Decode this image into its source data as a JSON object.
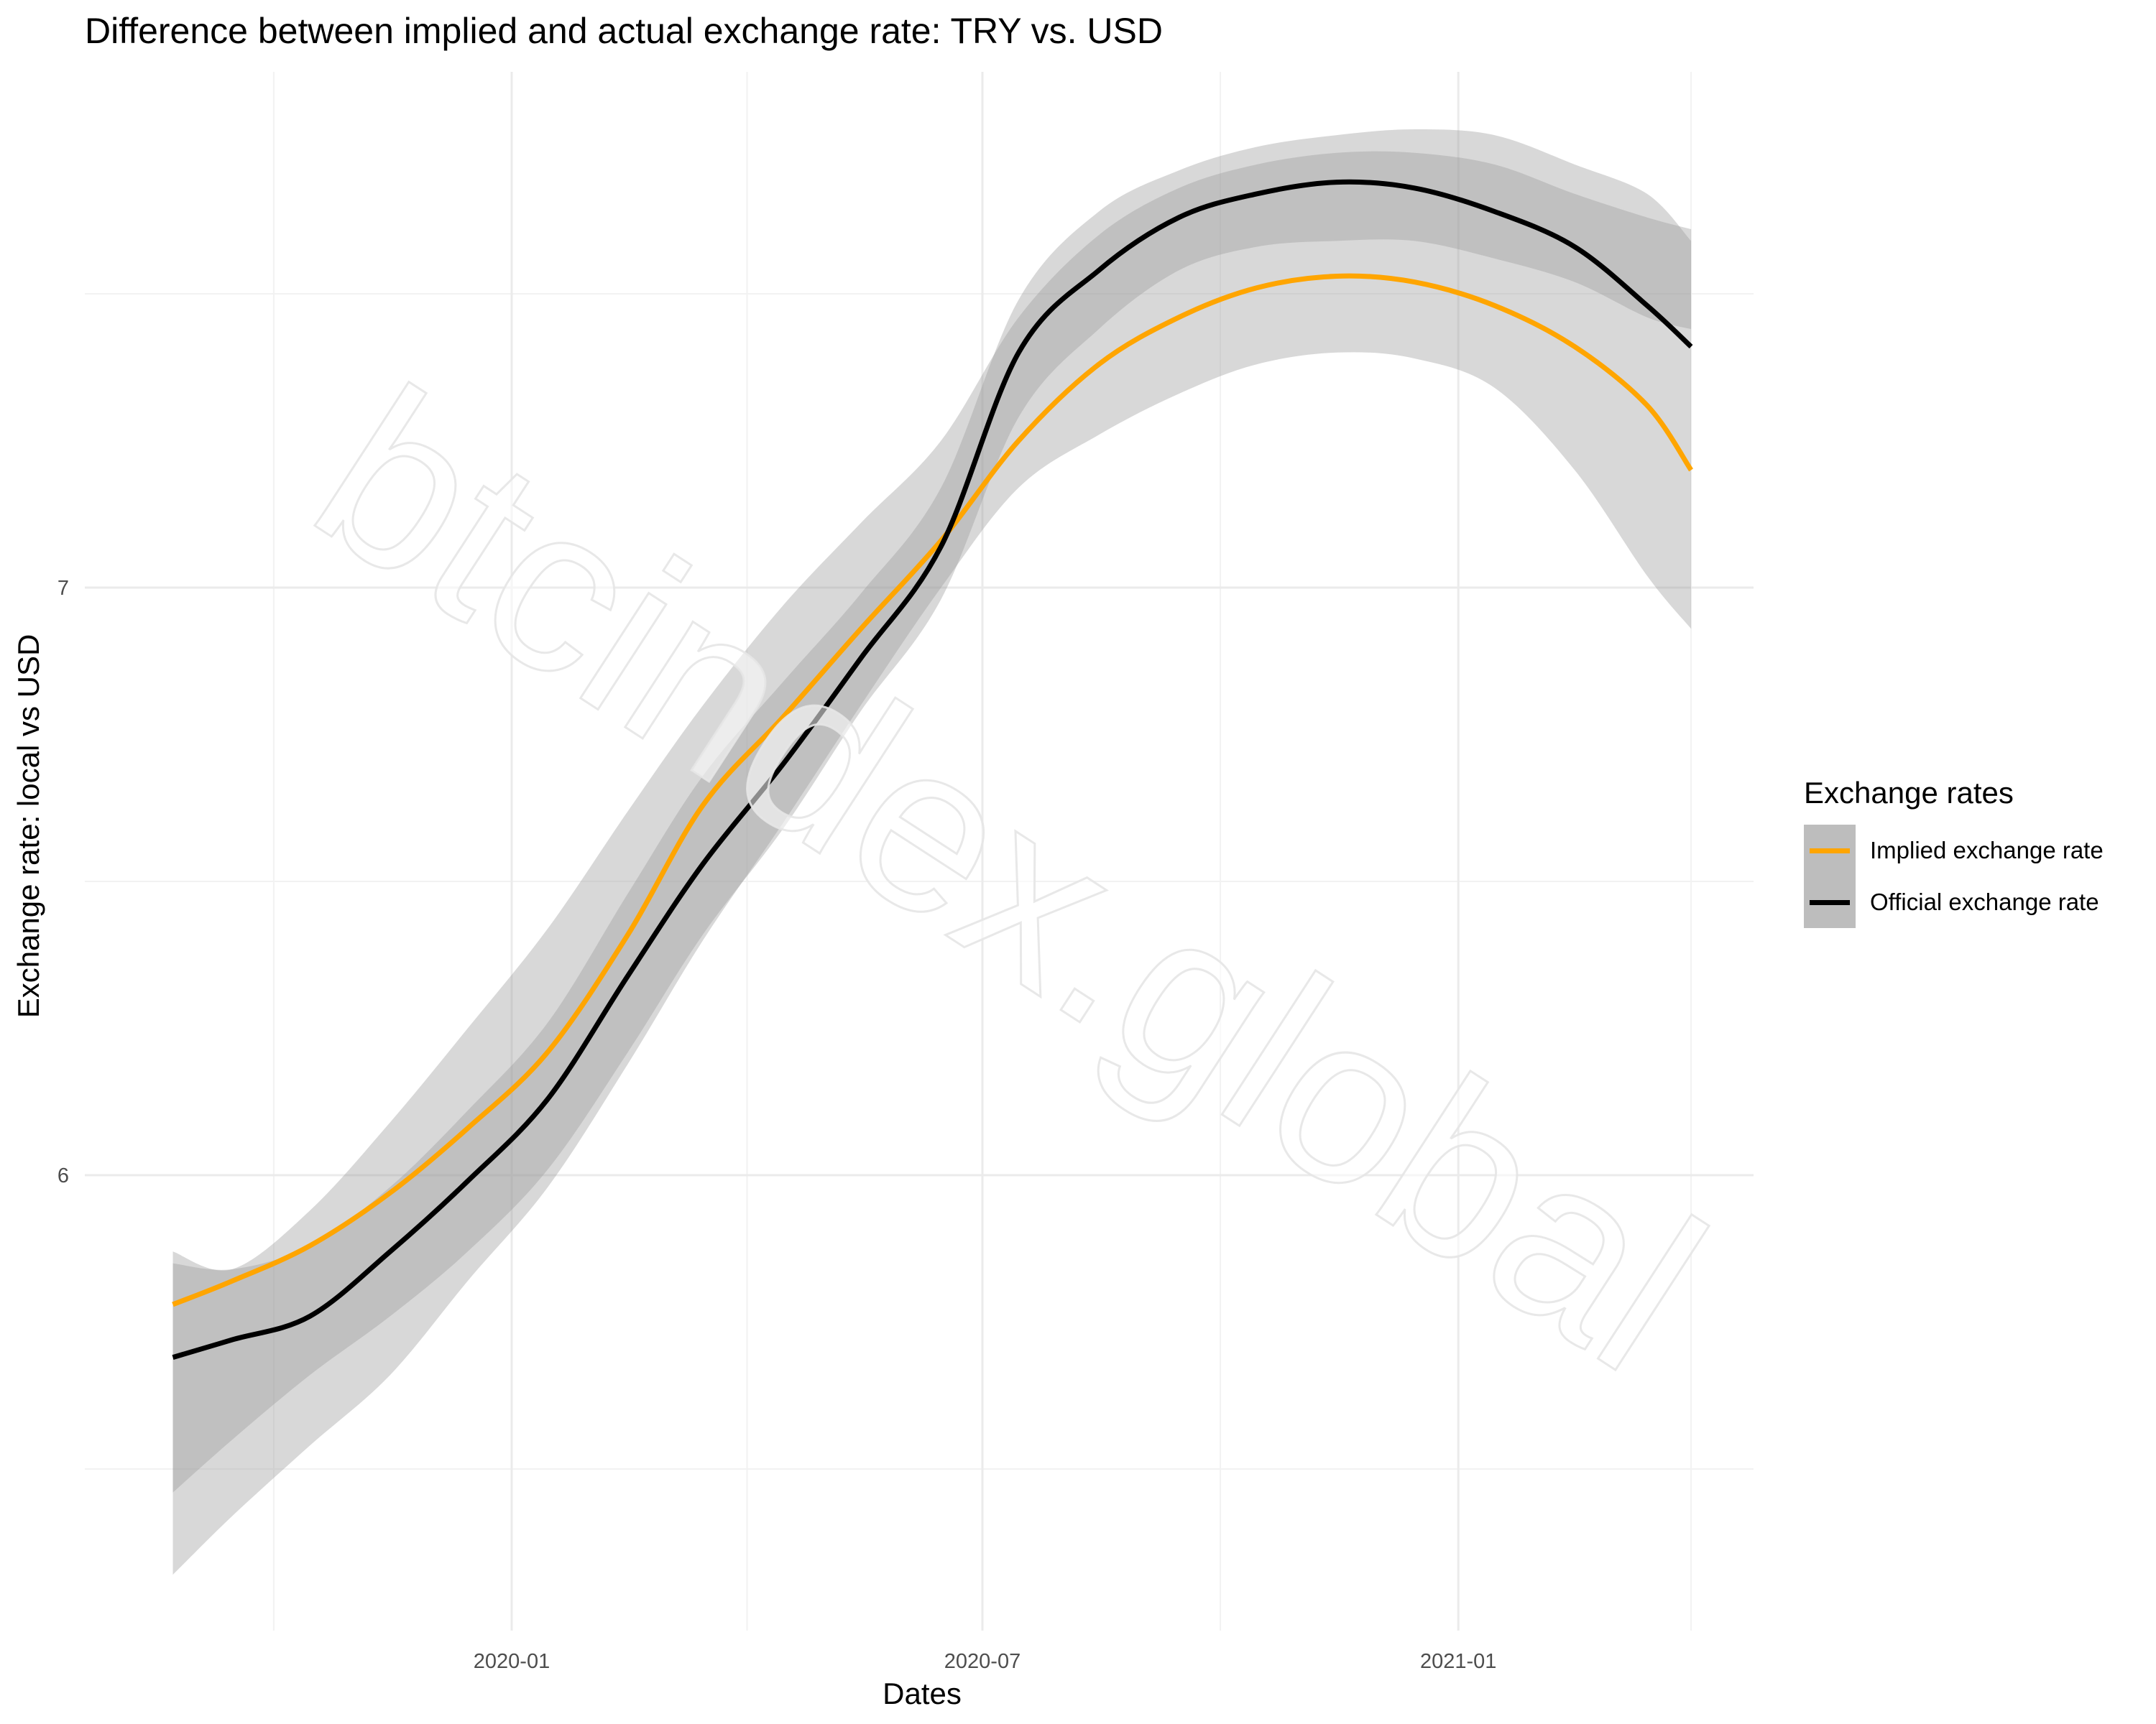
{
  "title": "Difference between implied and actual exchange rate: TRY vs. USD",
  "chart_data": {
    "type": "line",
    "title": "Difference between implied and actual exchange rate: TRY vs. USD",
    "xlabel": "Dates",
    "ylabel": "Exchange rate: local vs USD",
    "x_ticks": [
      "2020-01",
      "2020-07",
      "2021-01"
    ],
    "y_ticks": [
      "6",
      "7"
    ],
    "ylim": [
      5.26,
      7.82
    ],
    "grid": true,
    "legend_title": "Exchange rates",
    "legend_position": "right",
    "x": [
      "2019-08-23",
      "2019-09-15",
      "2019-10-15",
      "2019-11-15",
      "2019-12-15",
      "2020-01-15",
      "2020-02-15",
      "2020-03-15",
      "2020-04-15",
      "2020-05-15",
      "2020-06-15",
      "2020-07-15",
      "2020-08-15",
      "2020-09-15",
      "2020-10-15",
      "2020-11-15",
      "2020-12-15",
      "2021-01-15",
      "2021-02-15",
      "2021-03-15",
      "2021-04-01"
    ],
    "series": [
      {
        "name": "Implied exchange rate",
        "color": "#ffa500",
        "values": [
          5.78,
          5.82,
          5.88,
          5.97,
          6.08,
          6.21,
          6.41,
          6.63,
          6.78,
          6.93,
          7.08,
          7.25,
          7.38,
          7.46,
          7.51,
          7.53,
          7.52,
          7.48,
          7.41,
          7.31,
          7.2
        ],
        "ci_lower": [
          5.32,
          5.42,
          5.54,
          5.66,
          5.82,
          5.98,
          6.19,
          6.4,
          6.6,
          6.8,
          7.0,
          7.17,
          7.26,
          7.33,
          7.38,
          7.4,
          7.39,
          7.34,
          7.2,
          7.02,
          6.93
        ],
        "ci_upper": [
          5.87,
          5.84,
          5.94,
          6.09,
          6.25,
          6.42,
          6.62,
          6.8,
          6.97,
          7.11,
          7.25,
          7.46,
          7.6,
          7.68,
          7.72,
          7.74,
          7.74,
          7.72,
          7.67,
          7.63,
          7.61
        ]
      },
      {
        "name": "Official exchange rate",
        "color": "#000000",
        "values": [
          5.69,
          5.72,
          5.76,
          5.87,
          5.99,
          6.13,
          6.34,
          6.53,
          6.7,
          6.88,
          7.07,
          7.4,
          7.54,
          7.63,
          7.67,
          7.69,
          7.68,
          7.64,
          7.58,
          7.48,
          7.41
        ],
        "ci_lower": [
          5.46,
          5.55,
          5.66,
          5.76,
          5.87,
          6.01,
          6.21,
          6.41,
          6.59,
          6.79,
          6.98,
          7.29,
          7.44,
          7.54,
          7.58,
          7.59,
          7.59,
          7.56,
          7.52,
          7.46,
          7.44
        ],
        "ci_upper": [
          5.85,
          5.84,
          5.88,
          5.98,
          6.11,
          6.26,
          6.48,
          6.68,
          6.84,
          6.99,
          7.17,
          7.49,
          7.64,
          7.71,
          7.75,
          7.77,
          7.78,
          7.77,
          7.72,
          7.67,
          7.59
        ]
      }
    ]
  },
  "watermark": "btcindex.global"
}
